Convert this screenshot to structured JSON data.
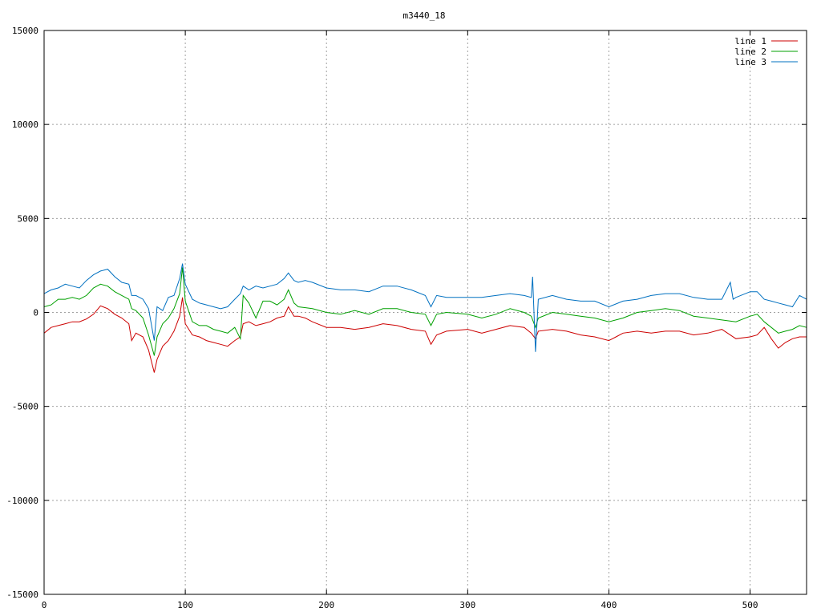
{
  "chart_data": {
    "type": "line",
    "title": "m3440_18",
    "xlabel": "",
    "ylabel": "",
    "xlim": [
      0,
      540
    ],
    "ylim": [
      -15000,
      15000
    ],
    "xticks": [
      0,
      100,
      200,
      300,
      400,
      500
    ],
    "yticks": [
      -15000,
      -10000,
      -5000,
      0,
      5000,
      10000,
      15000
    ],
    "grid": true,
    "legend_position": "top-right",
    "colors": {
      "line 1": "#cc0000",
      "line 2": "#00a000",
      "line 3": "#0070c0"
    },
    "series": [
      {
        "name": "line 1",
        "color": "#cc0000",
        "points": [
          [
            0,
            -1100
          ],
          [
            5,
            -800
          ],
          [
            10,
            -700
          ],
          [
            15,
            -600
          ],
          [
            20,
            -500
          ],
          [
            25,
            -500
          ],
          [
            30,
            -350
          ],
          [
            35,
            -100
          ],
          [
            40,
            350
          ],
          [
            45,
            200
          ],
          [
            50,
            -100
          ],
          [
            55,
            -300
          ],
          [
            60,
            -600
          ],
          [
            62,
            -1500
          ],
          [
            65,
            -1100
          ],
          [
            70,
            -1300
          ],
          [
            74,
            -2000
          ],
          [
            78,
            -3200
          ],
          [
            80,
            -2500
          ],
          [
            84,
            -1800
          ],
          [
            88,
            -1500
          ],
          [
            92,
            -1000
          ],
          [
            96,
            -200
          ],
          [
            98,
            800
          ],
          [
            100,
            -600
          ],
          [
            105,
            -1200
          ],
          [
            110,
            -1300
          ],
          [
            115,
            -1500
          ],
          [
            120,
            -1600
          ],
          [
            125,
            -1700
          ],
          [
            130,
            -1800
          ],
          [
            135,
            -1500
          ],
          [
            139,
            -1300
          ],
          [
            141,
            -600
          ],
          [
            145,
            -500
          ],
          [
            150,
            -700
          ],
          [
            155,
            -600
          ],
          [
            160,
            -500
          ],
          [
            165,
            -300
          ],
          [
            170,
            -200
          ],
          [
            173,
            300
          ],
          [
            177,
            -200
          ],
          [
            180,
            -200
          ],
          [
            185,
            -300
          ],
          [
            190,
            -500
          ],
          [
            200,
            -800
          ],
          [
            210,
            -800
          ],
          [
            220,
            -900
          ],
          [
            230,
            -800
          ],
          [
            240,
            -600
          ],
          [
            250,
            -700
          ],
          [
            260,
            -900
          ],
          [
            270,
            -1000
          ],
          [
            274,
            -1700
          ],
          [
            278,
            -1200
          ],
          [
            285,
            -1000
          ],
          [
            300,
            -900
          ],
          [
            310,
            -1100
          ],
          [
            320,
            -900
          ],
          [
            330,
            -700
          ],
          [
            340,
            -800
          ],
          [
            345,
            -1100
          ],
          [
            348,
            -1400
          ],
          [
            350,
            -1000
          ],
          [
            360,
            -900
          ],
          [
            370,
            -1000
          ],
          [
            380,
            -1200
          ],
          [
            390,
            -1300
          ],
          [
            400,
            -1500
          ],
          [
            405,
            -1300
          ],
          [
            410,
            -1100
          ],
          [
            420,
            -1000
          ],
          [
            430,
            -1100
          ],
          [
            440,
            -1000
          ],
          [
            450,
            -1000
          ],
          [
            460,
            -1200
          ],
          [
            470,
            -1100
          ],
          [
            480,
            -900
          ],
          [
            490,
            -1400
          ],
          [
            500,
            -1300
          ],
          [
            505,
            -1200
          ],
          [
            510,
            -800
          ],
          [
            515,
            -1400
          ],
          [
            520,
            -1900
          ],
          [
            525,
            -1600
          ],
          [
            530,
            -1400
          ],
          [
            535,
            -1300
          ],
          [
            540,
            -1300
          ]
        ]
      },
      {
        "name": "line 2",
        "color": "#00a000",
        "points": [
          [
            0,
            300
          ],
          [
            5,
            400
          ],
          [
            10,
            700
          ],
          [
            15,
            700
          ],
          [
            20,
            800
          ],
          [
            25,
            700
          ],
          [
            30,
            900
          ],
          [
            35,
            1300
          ],
          [
            40,
            1500
          ],
          [
            45,
            1400
          ],
          [
            50,
            1100
          ],
          [
            55,
            900
          ],
          [
            60,
            700
          ],
          [
            62,
            200
          ],
          [
            65,
            100
          ],
          [
            70,
            -300
          ],
          [
            74,
            -1200
          ],
          [
            78,
            -2300
          ],
          [
            80,
            -1300
          ],
          [
            84,
            -600
          ],
          [
            88,
            -300
          ],
          [
            92,
            200
          ],
          [
            96,
            1000
          ],
          [
            98,
            2400
          ],
          [
            100,
            600
          ],
          [
            105,
            -500
          ],
          [
            110,
            -700
          ],
          [
            115,
            -700
          ],
          [
            120,
            -900
          ],
          [
            125,
            -1000
          ],
          [
            130,
            -1100
          ],
          [
            135,
            -800
          ],
          [
            139,
            -1400
          ],
          [
            141,
            900
          ],
          [
            145,
            500
          ],
          [
            150,
            -300
          ],
          [
            155,
            600
          ],
          [
            160,
            600
          ],
          [
            165,
            400
          ],
          [
            170,
            700
          ],
          [
            173,
            1200
          ],
          [
            177,
            500
          ],
          [
            180,
            300
          ],
          [
            190,
            200
          ],
          [
            200,
            0
          ],
          [
            210,
            -100
          ],
          [
            220,
            100
          ],
          [
            230,
            -100
          ],
          [
            240,
            200
          ],
          [
            250,
            200
          ],
          [
            260,
            0
          ],
          [
            270,
            -100
          ],
          [
            274,
            -700
          ],
          [
            278,
            -100
          ],
          [
            285,
            0
          ],
          [
            300,
            -100
          ],
          [
            310,
            -300
          ],
          [
            320,
            -100
          ],
          [
            330,
            200
          ],
          [
            340,
            0
          ],
          [
            345,
            -200
          ],
          [
            348,
            -800
          ],
          [
            350,
            -300
          ],
          [
            360,
            0
          ],
          [
            370,
            -100
          ],
          [
            380,
            -200
          ],
          [
            390,
            -300
          ],
          [
            400,
            -500
          ],
          [
            410,
            -300
          ],
          [
            420,
            0
          ],
          [
            430,
            100
          ],
          [
            440,
            200
          ],
          [
            450,
            100
          ],
          [
            460,
            -200
          ],
          [
            470,
            -300
          ],
          [
            480,
            -400
          ],
          [
            490,
            -500
          ],
          [
            500,
            -200
          ],
          [
            505,
            -100
          ],
          [
            510,
            -500
          ],
          [
            515,
            -800
          ],
          [
            520,
            -1100
          ],
          [
            525,
            -1000
          ],
          [
            530,
            -900
          ],
          [
            535,
            -700
          ],
          [
            540,
            -800
          ]
        ]
      },
      {
        "name": "line 3",
        "color": "#0070c0",
        "points": [
          [
            0,
            1000
          ],
          [
            5,
            1200
          ],
          [
            10,
            1300
          ],
          [
            15,
            1500
          ],
          [
            20,
            1400
          ],
          [
            25,
            1300
          ],
          [
            30,
            1700
          ],
          [
            35,
            2000
          ],
          [
            40,
            2200
          ],
          [
            45,
            2300
          ],
          [
            50,
            1900
          ],
          [
            55,
            1600
          ],
          [
            60,
            1500
          ],
          [
            62,
            900
          ],
          [
            65,
            900
          ],
          [
            70,
            700
          ],
          [
            74,
            200
          ],
          [
            78,
            -1500
          ],
          [
            80,
            300
          ],
          [
            84,
            100
          ],
          [
            88,
            800
          ],
          [
            92,
            900
          ],
          [
            96,
            1800
          ],
          [
            98,
            2600
          ],
          [
            100,
            1500
          ],
          [
            105,
            700
          ],
          [
            110,
            500
          ],
          [
            115,
            400
          ],
          [
            120,
            300
          ],
          [
            125,
            200
          ],
          [
            130,
            300
          ],
          [
            135,
            700
          ],
          [
            139,
            1000
          ],
          [
            141,
            1400
          ],
          [
            145,
            1200
          ],
          [
            150,
            1400
          ],
          [
            155,
            1300
          ],
          [
            160,
            1400
          ],
          [
            165,
            1500
          ],
          [
            170,
            1800
          ],
          [
            173,
            2100
          ],
          [
            177,
            1700
          ],
          [
            180,
            1600
          ],
          [
            185,
            1700
          ],
          [
            190,
            1600
          ],
          [
            200,
            1300
          ],
          [
            210,
            1200
          ],
          [
            220,
            1200
          ],
          [
            230,
            1100
          ],
          [
            240,
            1400
          ],
          [
            250,
            1400
          ],
          [
            260,
            1200
          ],
          [
            270,
            900
          ],
          [
            274,
            300
          ],
          [
            278,
            900
          ],
          [
            285,
            800
          ],
          [
            300,
            800
          ],
          [
            310,
            800
          ],
          [
            320,
            900
          ],
          [
            330,
            1000
          ],
          [
            340,
            900
          ],
          [
            345,
            800
          ],
          [
            346,
            1900
          ],
          [
            348,
            -2100
          ],
          [
            350,
            700
          ],
          [
            360,
            900
          ],
          [
            370,
            700
          ],
          [
            380,
            600
          ],
          [
            390,
            600
          ],
          [
            400,
            300
          ],
          [
            410,
            600
          ],
          [
            420,
            700
          ],
          [
            430,
            900
          ],
          [
            440,
            1000
          ],
          [
            450,
            1000
          ],
          [
            460,
            800
          ],
          [
            470,
            700
          ],
          [
            480,
            700
          ],
          [
            486,
            1600
          ],
          [
            488,
            700
          ],
          [
            490,
            800
          ],
          [
            500,
            1100
          ],
          [
            505,
            1100
          ],
          [
            510,
            700
          ],
          [
            515,
            600
          ],
          [
            520,
            500
          ],
          [
            525,
            400
          ],
          [
            530,
            300
          ],
          [
            535,
            900
          ],
          [
            540,
            700
          ]
        ]
      }
    ]
  }
}
